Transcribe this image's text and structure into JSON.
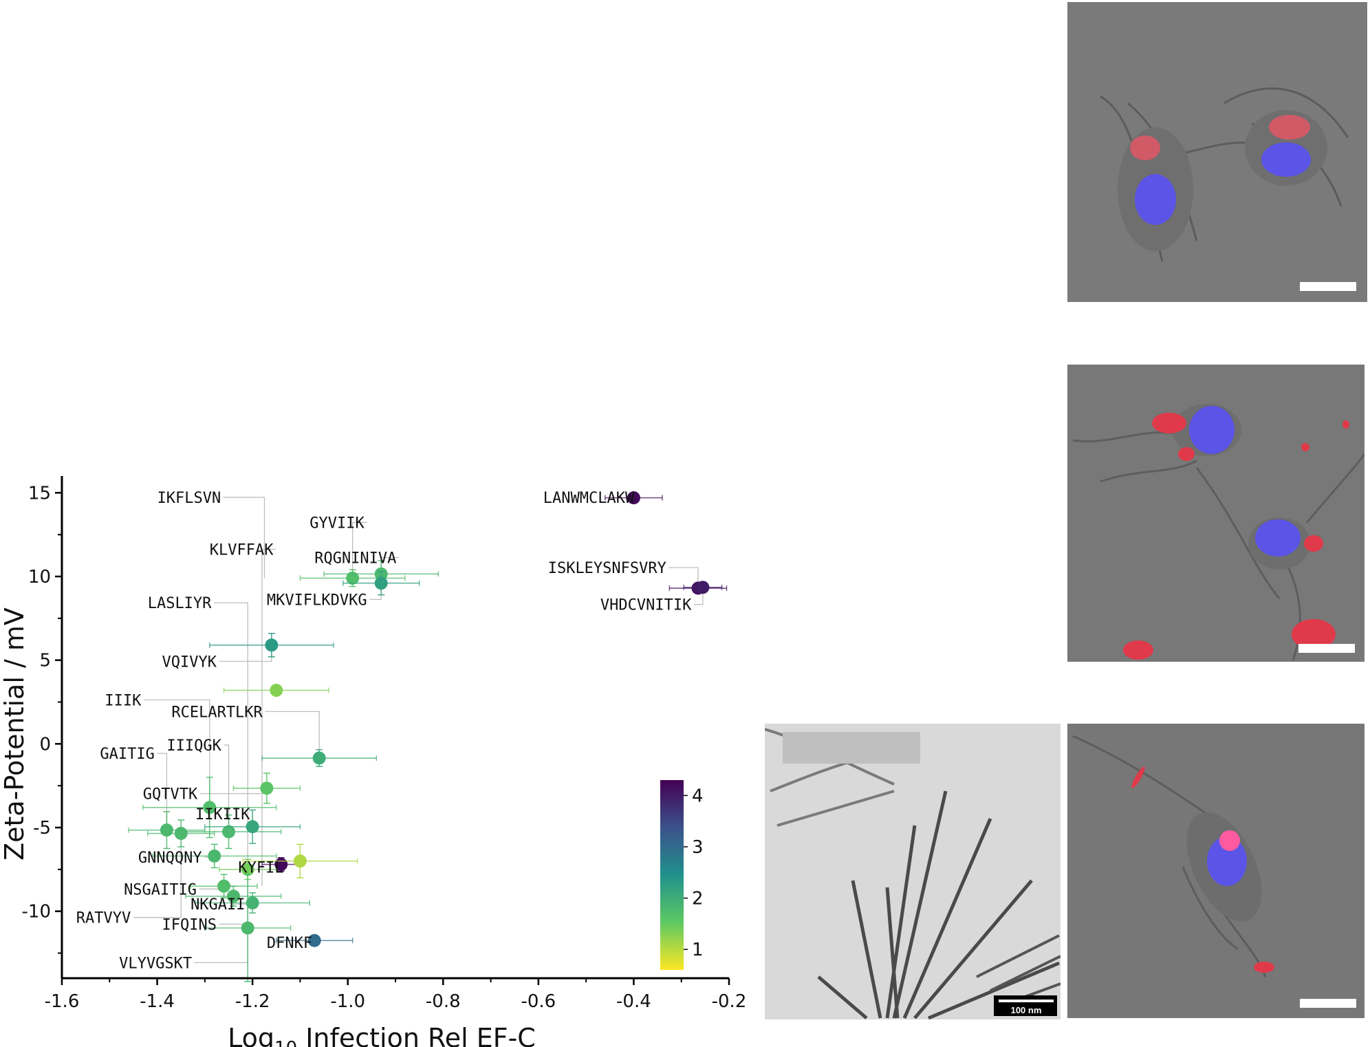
{
  "chart_data": {
    "type": "scatter",
    "title": "",
    "xlabel_main": "Log",
    "xlabel_sub": "10",
    "xlabel_rest": " Infection Rel EF-C",
    "ylabel": "Zeta-Potential / mV",
    "xlim": [
      -1.6,
      -0.2
    ],
    "ylim": [
      -14,
      16
    ],
    "x_ticks": [
      "-1.6",
      "-1.4",
      "-1.2",
      "-1.0",
      "-0.8",
      "-0.6",
      "-0.4",
      "-0.2"
    ],
    "x_tick_values": [
      -1.6,
      -1.4,
      -1.2,
      -1.0,
      -0.8,
      -0.6,
      -0.4,
      -0.2
    ],
    "y_ticks": [
      "15",
      "10",
      "5",
      "0",
      "-5",
      "-10"
    ],
    "y_tick_values": [
      15,
      10,
      5,
      0,
      -5,
      -10
    ],
    "colorbar": {
      "range": [
        0.6,
        4.3
      ],
      "ticks": [
        "1",
        "2",
        "3",
        "4"
      ],
      "tick_values": [
        1,
        2,
        3,
        4
      ]
    },
    "points": [
      {
        "x": -0.4,
        "y": 14.7,
        "c": 4.2,
        "xerr": 0.06,
        "yerr": 0.2
      },
      {
        "x": -0.265,
        "y": 9.3,
        "c": 4.1,
        "xerr": 0.06,
        "yerr": 0.2
      },
      {
        "x": -0.255,
        "y": 9.35,
        "c": 4.0,
        "xerr": 0.04,
        "yerr": 0.2
      },
      {
        "x": -0.99,
        "y": 9.9,
        "c": 1.7,
        "xerr": 0.11,
        "yerr": 0.5
      },
      {
        "x": -0.93,
        "y": 10.15,
        "c": 1.8,
        "xerr": 0.12,
        "yerr": 0.8
      },
      {
        "x": -0.93,
        "y": 9.6,
        "c": 2.2,
        "xerr": 0.08,
        "yerr": 0.7
      },
      {
        "x": -1.16,
        "y": 5.9,
        "c": 2.3,
        "xerr": 0.13,
        "yerr": 0.7
      },
      {
        "x": -1.15,
        "y": 3.2,
        "c": 1.3,
        "xerr": 0.11,
        "yerr": 0.3
      },
      {
        "x": -1.06,
        "y": -0.85,
        "c": 2.0,
        "xerr": 0.12,
        "yerr": 0.5
      },
      {
        "x": -1.17,
        "y": -2.65,
        "c": 1.6,
        "xerr": 0.07,
        "yerr": 0.9
      },
      {
        "x": -1.29,
        "y": -3.8,
        "c": 1.7,
        "xerr": 0.14,
        "yerr": 1.8
      },
      {
        "x": -1.38,
        "y": -5.15,
        "c": 1.8,
        "xerr": 0.08,
        "yerr": 1.1
      },
      {
        "x": -1.35,
        "y": -5.35,
        "c": 1.8,
        "xerr": 0.07,
        "yerr": 0.8
      },
      {
        "x": -1.25,
        "y": -5.25,
        "c": 1.8,
        "xerr": 0.11,
        "yerr": 1.0
      },
      {
        "x": -1.2,
        "y": -4.95,
        "c": 2.1,
        "xerr": 0.1,
        "yerr": 1.0
      },
      {
        "x": -1.28,
        "y": -6.7,
        "c": 1.8,
        "xerr": 0.13,
        "yerr": 0.7
      },
      {
        "x": -1.21,
        "y": -7.5,
        "c": 1.4,
        "xerr": 0.06,
        "yerr": 0.6
      },
      {
        "x": -1.14,
        "y": -7.2,
        "c": 4.2,
        "xerr": 0.04,
        "yerr": 0.4
      },
      {
        "x": -1.1,
        "y": -7.0,
        "c": 1.05,
        "xerr": 0.12,
        "yerr": 1.0
      },
      {
        "x": -1.26,
        "y": -8.5,
        "c": 1.7,
        "xerr": 0.07,
        "yerr": 0.7
      },
      {
        "x": -1.24,
        "y": -9.1,
        "c": 1.8,
        "xerr": 0.1,
        "yerr": 0.6
      },
      {
        "x": -1.2,
        "y": -9.5,
        "c": 1.9,
        "xerr": 0.12,
        "yerr": 0.6
      },
      {
        "x": -1.21,
        "y": -11.0,
        "c": 1.8,
        "xerr": 0.09,
        "yerr": 3.2
      },
      {
        "x": -1.07,
        "y": -11.75,
        "c": 3.0,
        "xerr": 0.08,
        "yerr": 0.3
      }
    ],
    "labels": [
      {
        "text": "IKFLSVN",
        "x": -1.4,
        "y": 14.4,
        "px": -1.175,
        "py": 9.9
      },
      {
        "text": "GYVIIK",
        "x": -1.08,
        "y": 12.9,
        "px": -0.99,
        "py": 9.9
      },
      {
        "text": "KLVFFAK",
        "x": -1.29,
        "y": 11.3,
        "px": -1.18,
        "py": -8.5
      },
      {
        "text": "RQGNINIVA",
        "x": -1.07,
        "y": 10.8,
        "px": -0.93,
        "py": 10.15
      },
      {
        "text": "LANWMCLAKW",
        "x": -0.59,
        "y": 14.4,
        "px": -0.4,
        "py": 14.7
      },
      {
        "text": "ISKLEYSNFSVRY",
        "x": -0.58,
        "y": 10.2,
        "px": -0.265,
        "py": 9.3
      },
      {
        "text": "VHDCVNITIK",
        "x": -0.47,
        "y": 8.0,
        "px": -0.255,
        "py": 9.35
      },
      {
        "text": "LASLIYR",
        "x": -1.42,
        "y": 8.1,
        "px": -1.21,
        "py": -11.0
      },
      {
        "text": "MKVIFLKDVKG",
        "x": -1.17,
        "y": 8.3,
        "px": -0.93,
        "py": 9.6
      },
      {
        "text": "VQIVYK",
        "x": -1.39,
        "y": 4.6,
        "px": -1.16,
        "py": 5.9
      },
      {
        "text": "IIIK",
        "x": -1.51,
        "y": 2.3,
        "px": -1.29,
        "py": -3.8
      },
      {
        "text": "RCELARTLKR",
        "x": -1.37,
        "y": 1.6,
        "px": -1.06,
        "py": -0.85
      },
      {
        "text": "GAITIG",
        "x": -1.52,
        "y": -0.9,
        "px": -1.38,
        "py": -5.15
      },
      {
        "text": "IIIQGK",
        "x": -1.38,
        "y": -0.4,
        "px": -1.25,
        "py": -5.25
      },
      {
        "text": "GQTVTK",
        "x": -1.43,
        "y": -3.3,
        "px": -1.17,
        "py": -2.65
      },
      {
        "text": "IIKIIK",
        "x": -1.32,
        "y": -4.5,
        "px": -1.2,
        "py": -4.95
      },
      {
        "text": "GNNQQNY",
        "x": -1.44,
        "y": -7.1,
        "px": -1.28,
        "py": -6.7
      },
      {
        "text": "KYFIL",
        "x": -1.23,
        "y": -7.7,
        "px": -1.14,
        "py": -7.2
      },
      {
        "text": "NSGAITIG",
        "x": -1.47,
        "y": -9.0,
        "px": -1.26,
        "py": -8.5
      },
      {
        "text": "NKGAII",
        "x": -1.33,
        "y": -9.9,
        "px": -1.24,
        "py": -9.1
      },
      {
        "text": "RATVYV",
        "x": -1.57,
        "y": -10.7,
        "px": -1.35,
        "py": -5.35
      },
      {
        "text": "IFQINS",
        "x": -1.39,
        "y": -11.1,
        "px": -1.21,
        "py": -11.0
      },
      {
        "text": "DFNKF",
        "x": -1.17,
        "y": -12.2,
        "px": -1.07,
        "py": -11.75
      },
      {
        "text": "VLYVGSKT",
        "x": -1.48,
        "y": -13.4,
        "px": -1.21,
        "py": -7.5
      }
    ]
  },
  "images": {
    "cell_top": {
      "kind": "fluorescence-microscopy",
      "accent": "#6a5cff",
      "stain": "#ff5a6e"
    },
    "cell_middle": {
      "kind": "fluorescence-microscopy",
      "accent": "#6a5cff",
      "stain": "#ff3348"
    },
    "cell_bottom": {
      "kind": "fluorescence-microscopy",
      "accent": "#6a5cff",
      "stain": "#ff6aa0"
    },
    "tem": {
      "kind": "electron-micrograph",
      "scale_label": "100 nm"
    }
  }
}
